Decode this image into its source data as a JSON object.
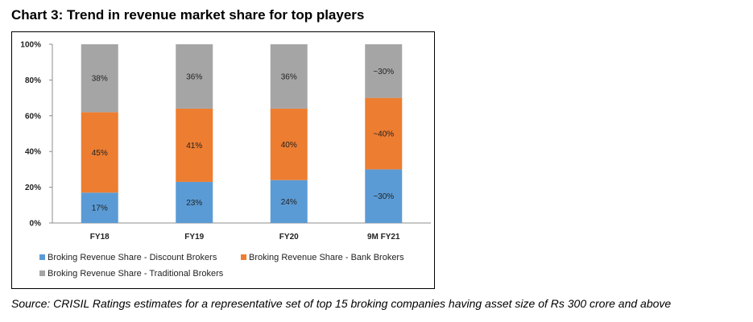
{
  "title": "Chart 3: Trend in revenue market share for top players",
  "source": "Source: CRISIL Ratings estimates for a representative set of top 15 broking companies having asset size of Rs 300 crore and above",
  "chart_data": {
    "type": "bar",
    "stacked": true,
    "categories": [
      "FY18",
      "FY19",
      "FY20",
      "9M FY21"
    ],
    "ylim": [
      0,
      100
    ],
    "y_ticks": [
      "0%",
      "20%",
      "40%",
      "60%",
      "80%",
      "100%"
    ],
    "y_tick_values": [
      0,
      20,
      40,
      60,
      80,
      100
    ],
    "grid": false,
    "legend_position": "bottom",
    "series": [
      {
        "name": "Broking Revenue Share - Discount Brokers",
        "color": "#5b9bd5",
        "values": [
          17,
          23,
          24,
          30
        ],
        "labels": [
          "17%",
          "23%",
          "24%",
          "~30%"
        ]
      },
      {
        "name": "Broking Revenue Share - Bank Brokers",
        "color": "#ed7d31",
        "values": [
          45,
          41,
          40,
          40
        ],
        "labels": [
          "45%",
          "41%",
          "40%",
          "~40%"
        ]
      },
      {
        "name": "Broking Revenue Share - Traditional Brokers",
        "color": "#a5a5a5",
        "values": [
          38,
          36,
          36,
          30
        ],
        "labels": [
          "38%",
          "36%",
          "36%",
          "~30%"
        ]
      }
    ]
  }
}
